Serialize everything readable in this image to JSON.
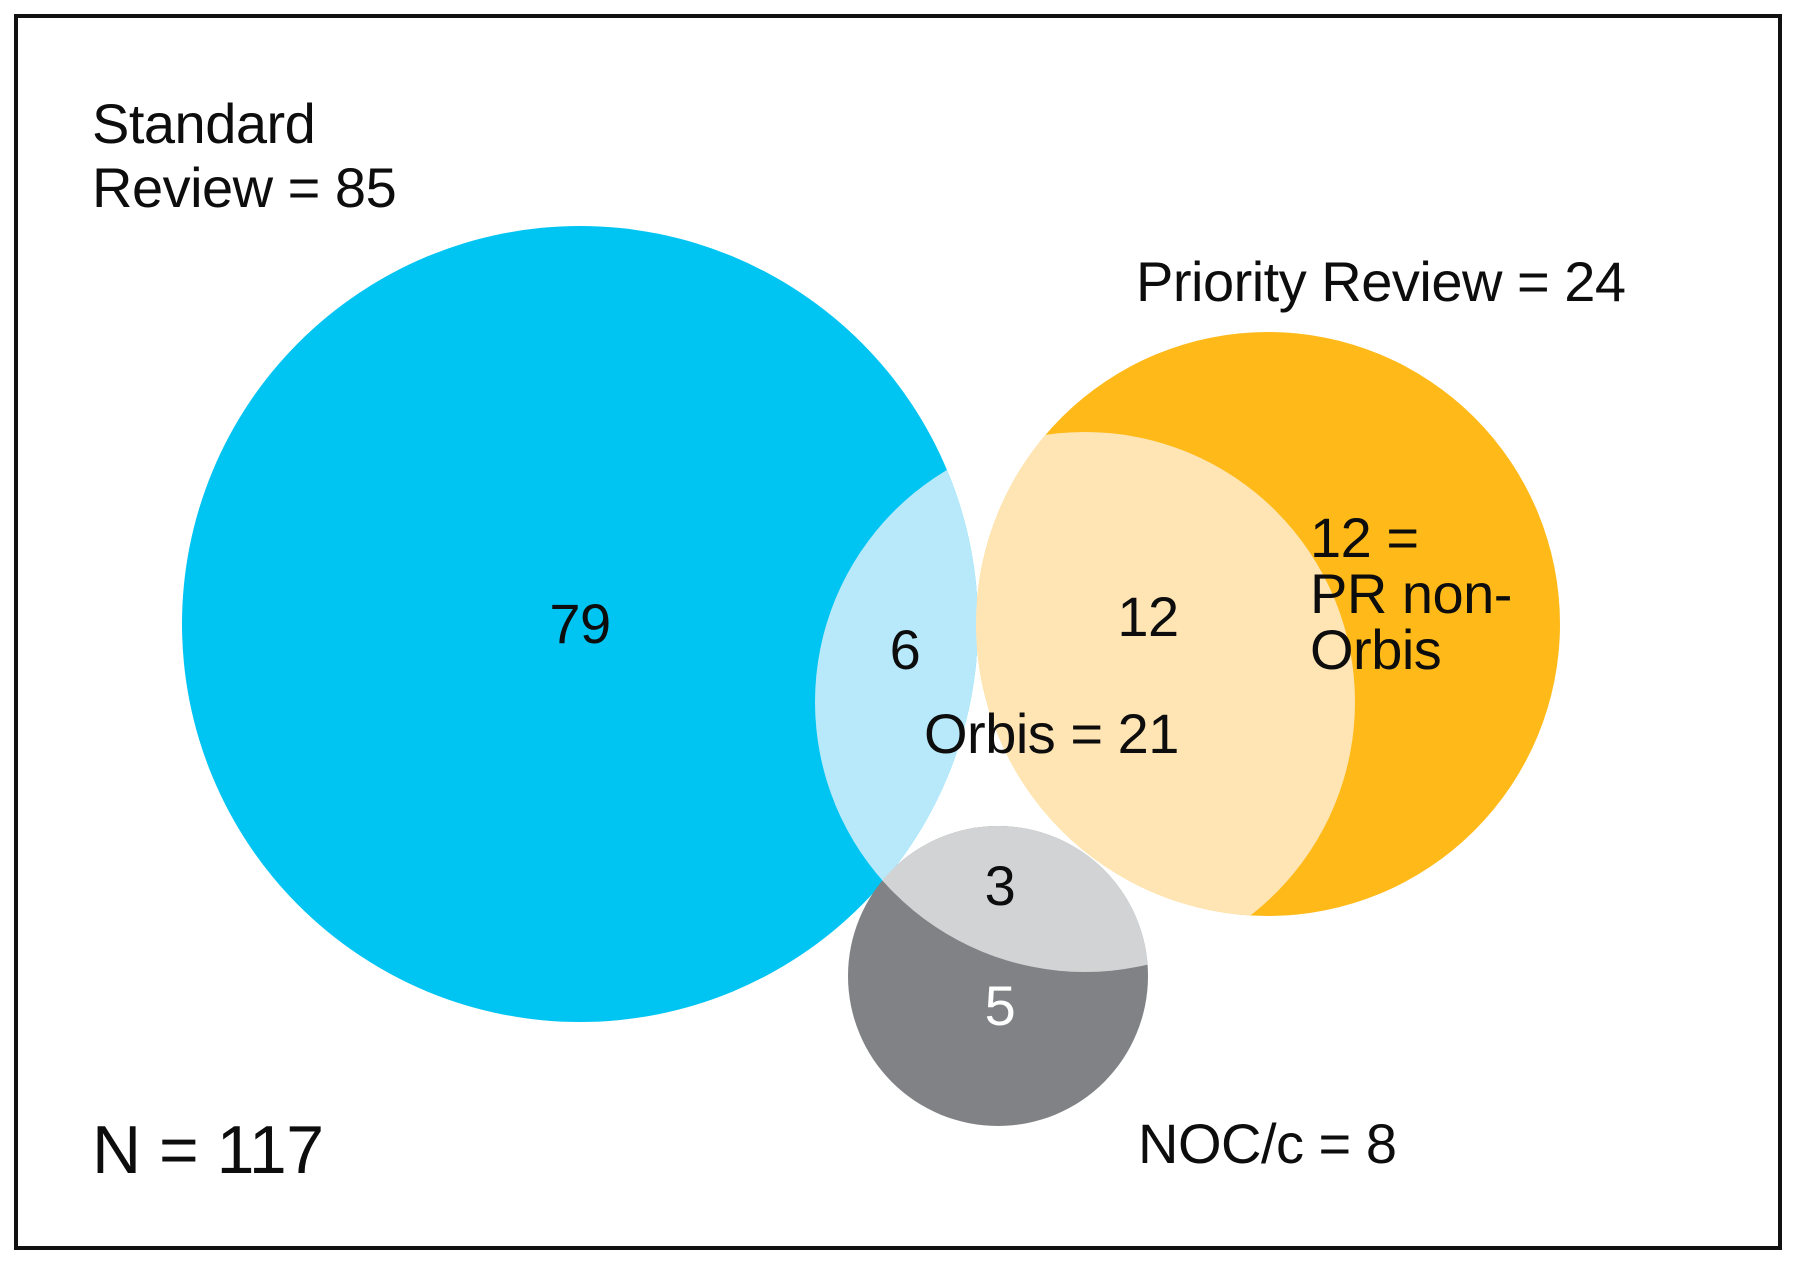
{
  "colors": {
    "standard": "#00C5F2",
    "standard_orbis_overlap": "#B8E9FA",
    "priority": "#FFBA19",
    "priority_orbis_overlap": "#FFE5B4",
    "noc_light": "#D1D3D4",
    "noc_dark": "#808285"
  },
  "labels": {
    "standard_line1": "Standard",
    "standard_line2": "Review = 85",
    "priority": "Priority Review  = 24",
    "noc": "NOC/c = 8",
    "orbis": "Orbis = 21",
    "total": "N = 117",
    "pr_non_orbis_line1": "12 =",
    "pr_non_orbis_line2": "PR non-",
    "pr_non_orbis_line3": "Orbis"
  },
  "regions": {
    "standard_only": "79",
    "standard_orbis": "6",
    "priority_orbis": "12",
    "noc_orbis": "3",
    "noc_only": "5"
  }
}
